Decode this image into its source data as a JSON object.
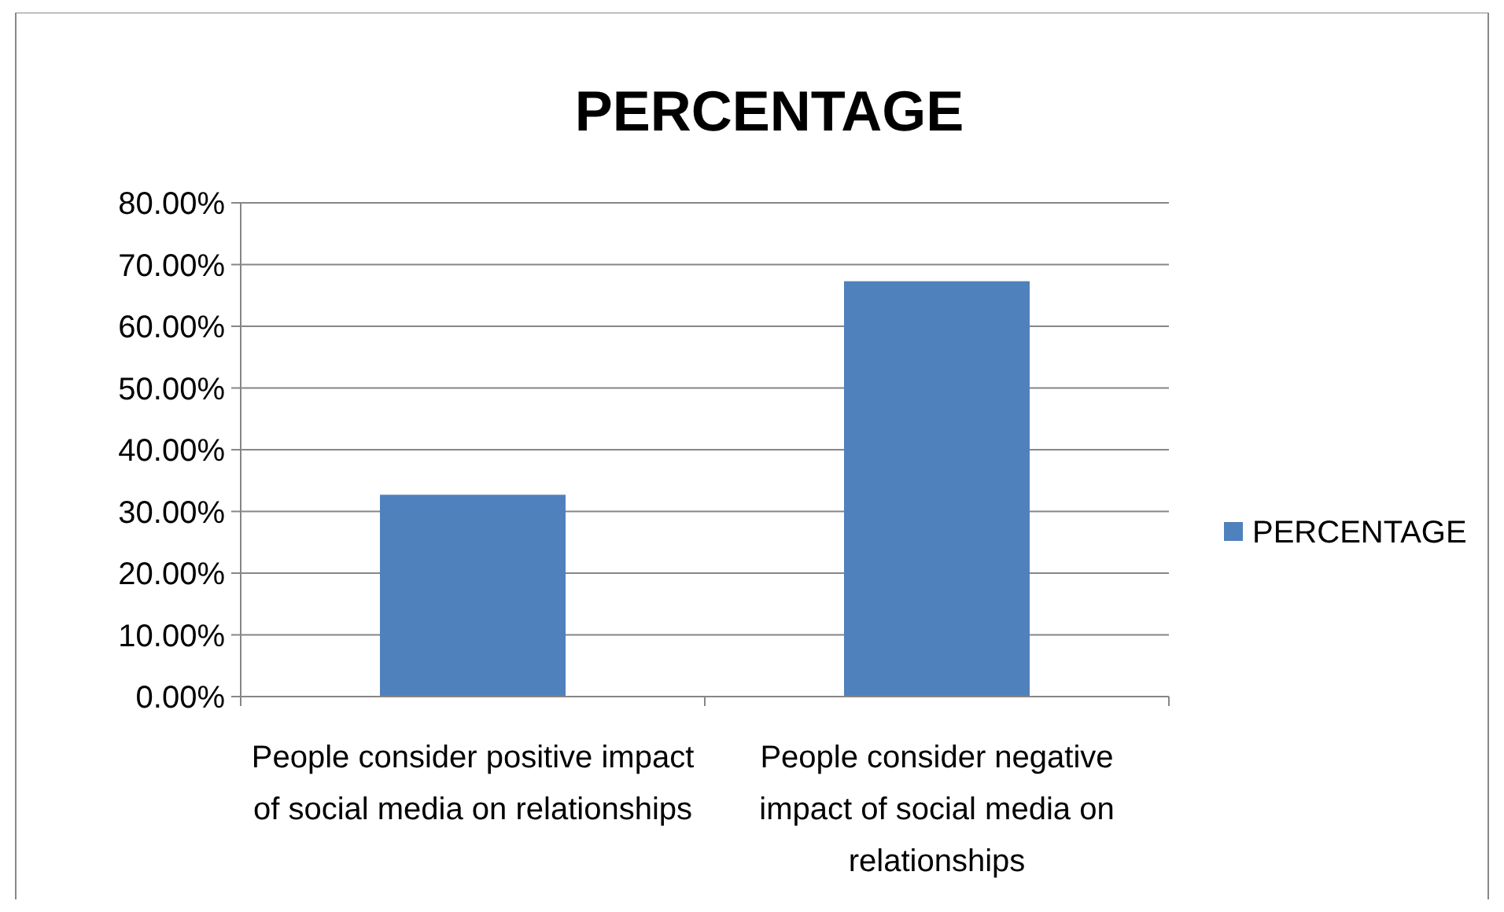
{
  "chart_data": {
    "type": "bar",
    "title": "PERCENTAGE",
    "categories": [
      "People consider positive impact of social media on relationships",
      "People consider negative impact of social media on relationships"
    ],
    "series": [
      {
        "name": "PERCENTAGE",
        "color": "#4f81bd",
        "values": [
          32.7,
          67.3
        ]
      }
    ],
    "ylim": [
      0,
      80
    ],
    "yticks": [
      {
        "value": 0,
        "label": "0.00%"
      },
      {
        "value": 10,
        "label": "10.00%"
      },
      {
        "value": 20,
        "label": "20.00%"
      },
      {
        "value": 30,
        "label": "30.00%"
      },
      {
        "value": 40,
        "label": "40.00%"
      },
      {
        "value": 50,
        "label": "50.00%"
      },
      {
        "value": 60,
        "label": "60.00%"
      },
      {
        "value": 70,
        "label": "70.00%"
      },
      {
        "value": 80,
        "label": "80.00%"
      }
    ],
    "grid": "y",
    "legend": "right"
  }
}
